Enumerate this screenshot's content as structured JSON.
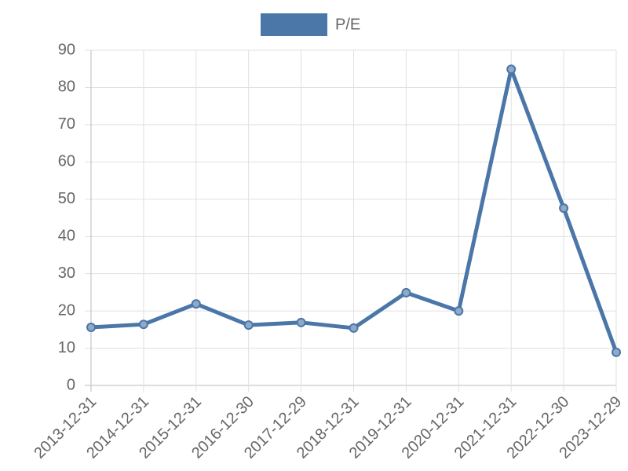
{
  "chart_data": {
    "type": "line",
    "categories": [
      "2013-12-31",
      "2014-12-31",
      "2015-12-31",
      "2016-12-30",
      "2017-12-29",
      "2018-12-31",
      "2019-12-31",
      "2020-12-31",
      "2021-12-31",
      "2022-12-30",
      "2023-12-29"
    ],
    "series": [
      {
        "name": "P/E",
        "color": "#4a76a8",
        "values": [
          15.6,
          16.4,
          21.9,
          16.2,
          16.9,
          15.4,
          24.9,
          20.0,
          84.9,
          47.6,
          8.9
        ]
      }
    ],
    "ylim": [
      0,
      90
    ],
    "yticks": [
      0,
      10,
      20,
      30,
      40,
      50,
      60,
      70,
      80,
      90
    ],
    "grid": true
  }
}
